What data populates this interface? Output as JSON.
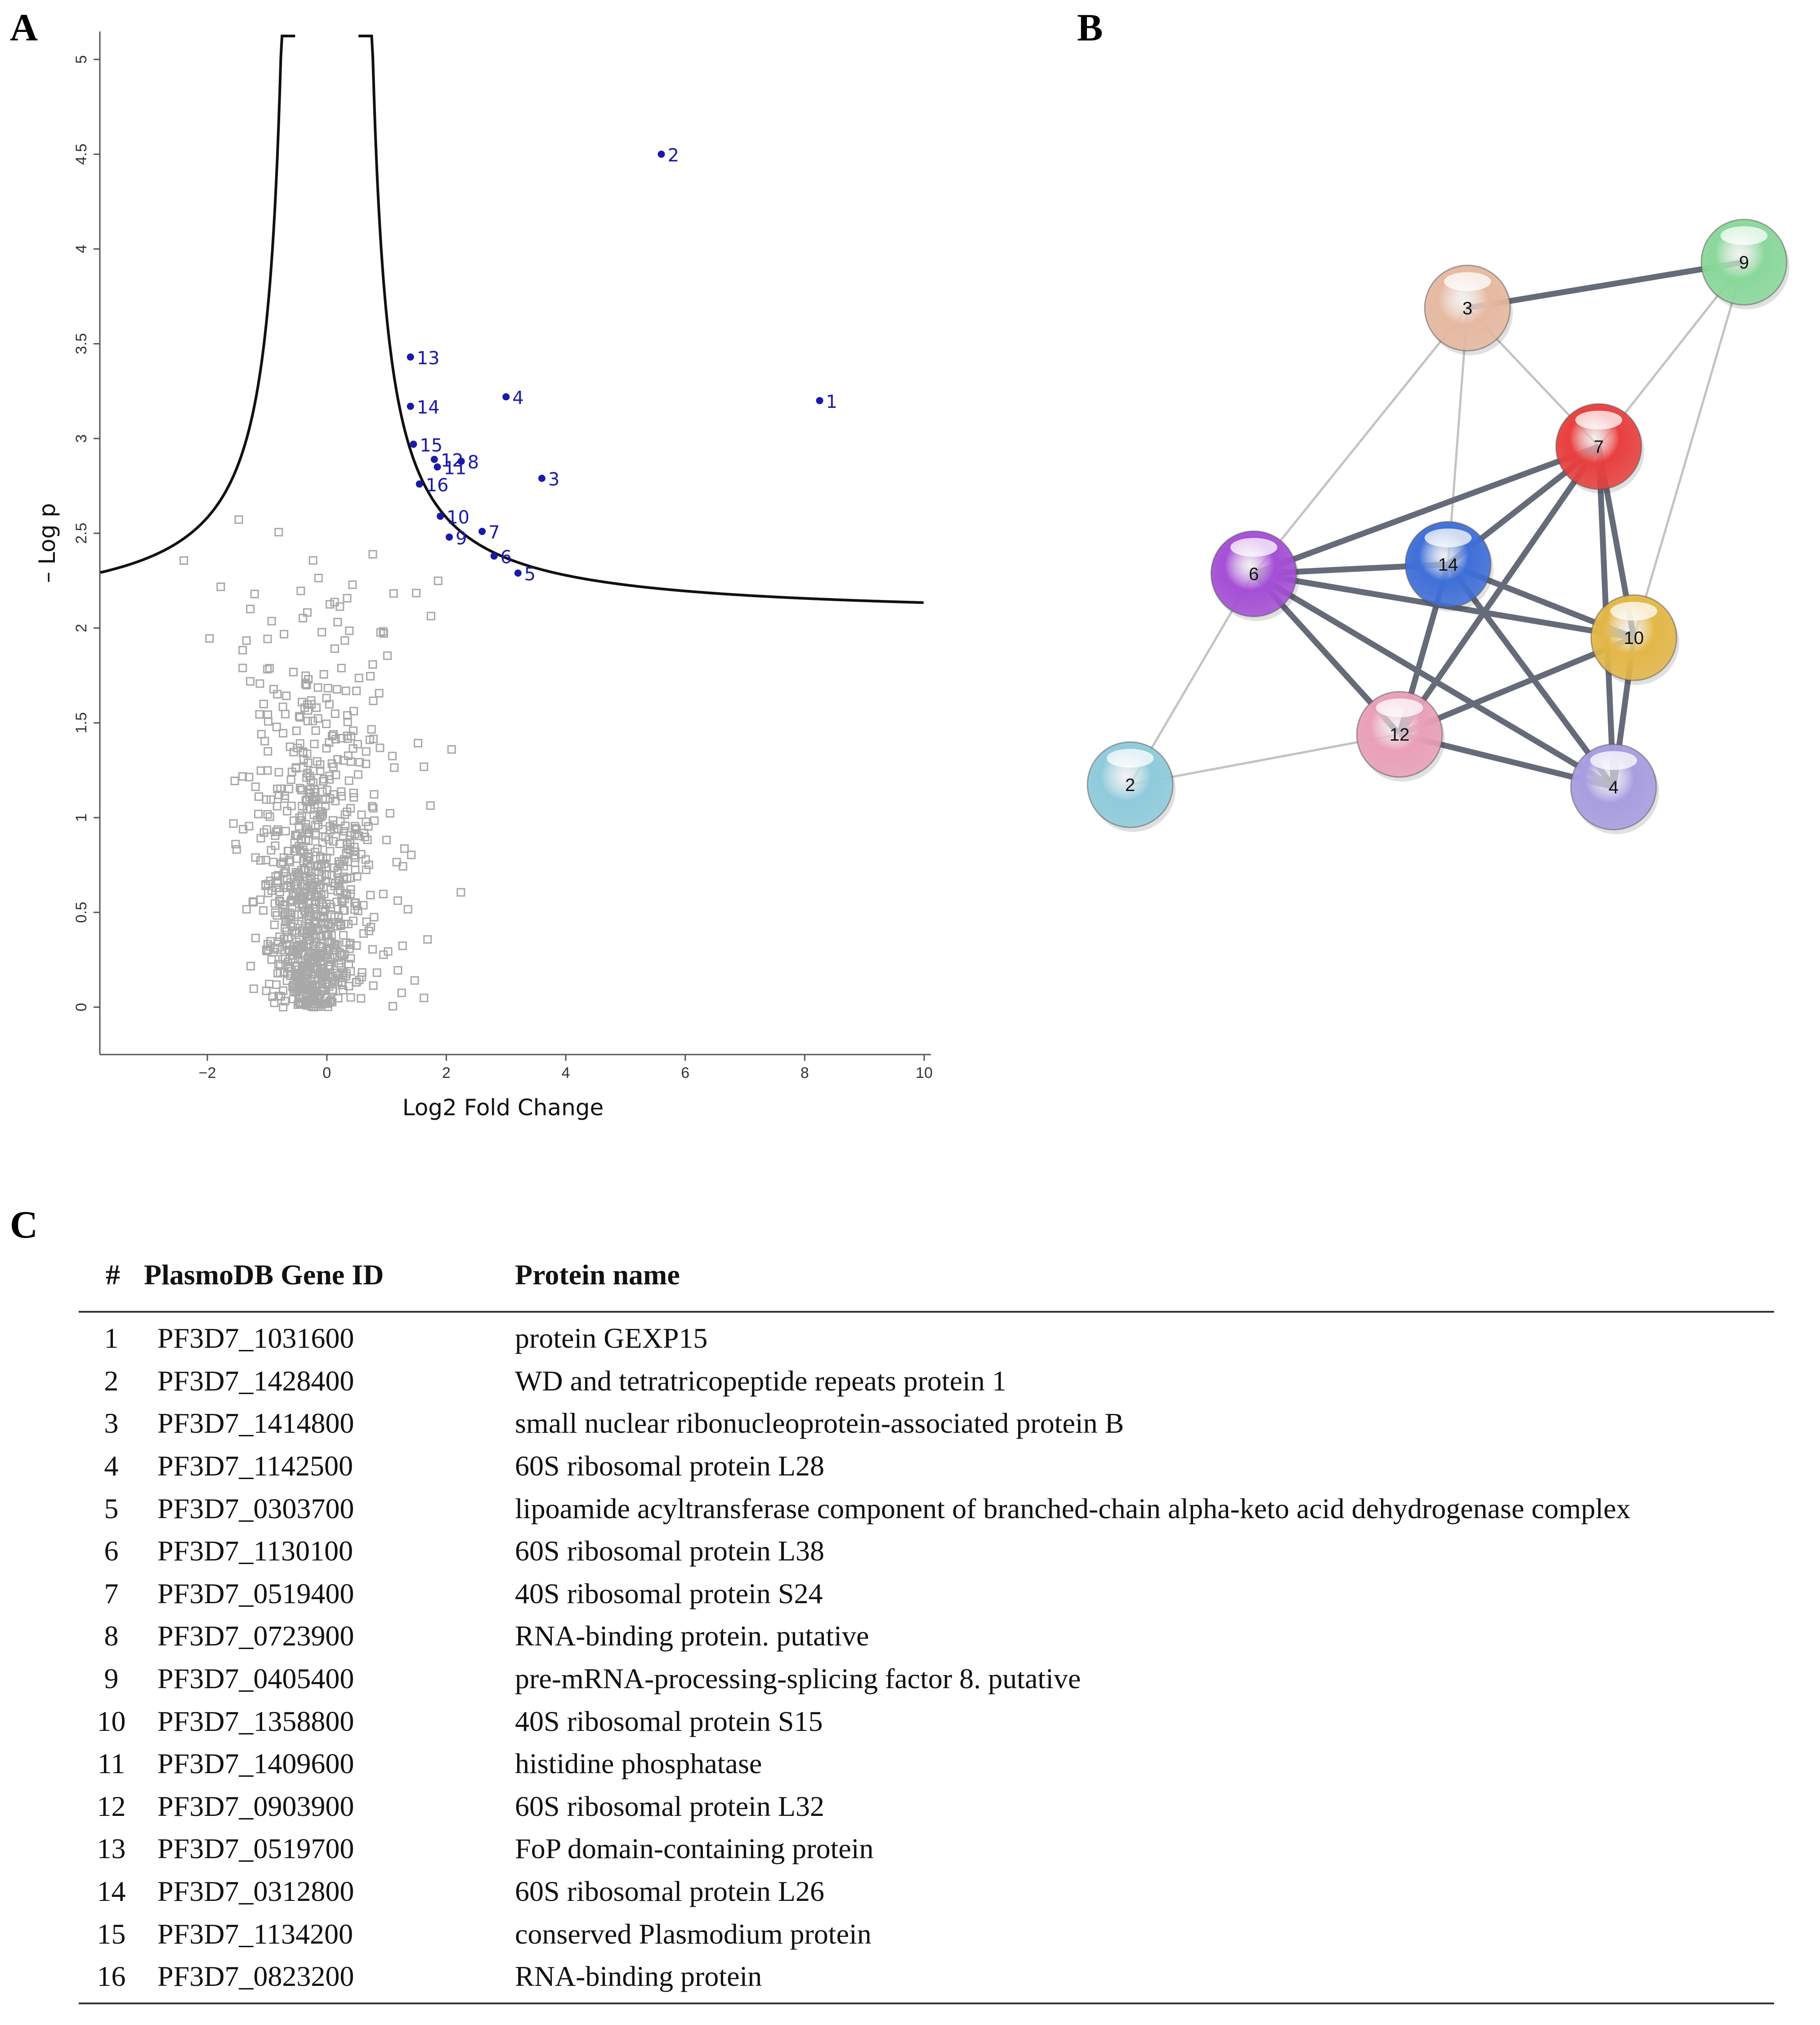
{
  "panels": {
    "a": "A",
    "b": "B",
    "c": "C"
  },
  "chart_data": [
    {
      "type": "scatter",
      "title": "",
      "xlabel": "Log2 Fold Change",
      "ylabel": "– Log p",
      "xlim": [
        -3.8,
        10
      ],
      "ylim": [
        -0.25,
        5.1
      ],
      "xticks": [
        -2,
        0,
        2,
        4,
        6,
        8,
        10
      ],
      "xtick_labels": [
        "−2",
        "0",
        "2",
        "4",
        "6",
        "8",
        "10"
      ],
      "yticks": [
        0,
        0.5,
        1,
        1.5,
        2,
        2.5,
        3,
        3.5,
        4,
        4.5,
        5
      ],
      "ytick_labels": [
        "0",
        "0.5",
        "1",
        "1.5",
        "2",
        "2.5",
        "3",
        "3.5",
        "4",
        "4.5",
        "5"
      ],
      "significance_curve": {
        "s0": 0.5,
        "c": 0.8,
        "description": "hyperbolic cutoff"
      },
      "significant": [
        {
          "label": "1",
          "x": 8.25,
          "y": 3.2
        },
        {
          "label": "2",
          "x": 5.6,
          "y": 4.5
        },
        {
          "label": "3",
          "x": 3.6,
          "y": 2.79
        },
        {
          "label": "4",
          "x": 3.0,
          "y": 3.22
        },
        {
          "label": "5",
          "x": 3.2,
          "y": 2.29
        },
        {
          "label": "6",
          "x": 2.8,
          "y": 2.38
        },
        {
          "label": "7",
          "x": 2.6,
          "y": 2.51
        },
        {
          "label": "8",
          "x": 2.25,
          "y": 2.88
        },
        {
          "label": "9",
          "x": 2.05,
          "y": 2.48
        },
        {
          "label": "10",
          "x": 1.9,
          "y": 2.59
        },
        {
          "label": "11",
          "x": 1.85,
          "y": 2.85
        },
        {
          "label": "12",
          "x": 1.8,
          "y": 2.89
        },
        {
          "label": "13",
          "x": 1.4,
          "y": 3.43
        },
        {
          "label": "14",
          "x": 1.4,
          "y": 3.17
        },
        {
          "label": "15",
          "x": 1.45,
          "y": 2.97
        },
        {
          "label": "16",
          "x": 1.55,
          "y": 2.76
        }
      ],
      "background_point_count": 900
    },
    {
      "type": "network",
      "nodes": [
        {
          "id": "3",
          "color": "#e6b9a1"
        },
        {
          "id": "9",
          "color": "#8ad89a"
        },
        {
          "id": "7",
          "color": "#e8403f"
        },
        {
          "id": "6",
          "color": "#a54fd6"
        },
        {
          "id": "14",
          "color": "#3f6fd8"
        },
        {
          "id": "10",
          "color": "#e3b748"
        },
        {
          "id": "12",
          "color": "#e9a0b8"
        },
        {
          "id": "2",
          "color": "#8fcbdb"
        },
        {
          "id": "4",
          "color": "#a89de0"
        }
      ],
      "edges": [
        {
          "source": "3",
          "target": "9",
          "weight": "strong"
        },
        {
          "source": "3",
          "target": "6",
          "weight": "weak"
        },
        {
          "source": "3",
          "target": "14",
          "weight": "weak"
        },
        {
          "source": "3",
          "target": "7",
          "weight": "weak"
        },
        {
          "source": "9",
          "target": "7",
          "weight": "weak"
        },
        {
          "source": "9",
          "target": "10",
          "weight": "weak"
        },
        {
          "source": "7",
          "target": "6",
          "weight": "strong"
        },
        {
          "source": "7",
          "target": "14",
          "weight": "strong"
        },
        {
          "source": "7",
          "target": "10",
          "weight": "strong"
        },
        {
          "source": "7",
          "target": "12",
          "weight": "strong"
        },
        {
          "source": "7",
          "target": "4",
          "weight": "strong"
        },
        {
          "source": "6",
          "target": "14",
          "weight": "strong"
        },
        {
          "source": "6",
          "target": "10",
          "weight": "strong"
        },
        {
          "source": "6",
          "target": "12",
          "weight": "strong"
        },
        {
          "source": "6",
          "target": "4",
          "weight": "strong"
        },
        {
          "source": "6",
          "target": "2",
          "weight": "weak"
        },
        {
          "source": "14",
          "target": "10",
          "weight": "strong"
        },
        {
          "source": "14",
          "target": "12",
          "weight": "strong"
        },
        {
          "source": "14",
          "target": "4",
          "weight": "strong"
        },
        {
          "source": "10",
          "target": "12",
          "weight": "strong"
        },
        {
          "source": "10",
          "target": "4",
          "weight": "strong"
        },
        {
          "source": "12",
          "target": "4",
          "weight": "strong"
        },
        {
          "source": "12",
          "target": "2",
          "weight": "weak"
        }
      ]
    },
    {
      "type": "table",
      "headers": [
        "#",
        "PlasmoDB Gene ID",
        "Protein name"
      ],
      "rows": [
        {
          "num": "1",
          "gene_id": "PF3D7_1031600",
          "protein": "protein GEXP15"
        },
        {
          "num": "2",
          "gene_id": "PF3D7_1428400",
          "protein": "WD and tetratricopeptide repeats protein 1"
        },
        {
          "num": "3",
          "gene_id": "PF3D7_1414800",
          "protein": "small nuclear ribonucleoprotein-associated protein B"
        },
        {
          "num": "4",
          "gene_id": "PF3D7_1142500",
          "protein": "60S ribosomal protein L28"
        },
        {
          "num": "5",
          "gene_id": "PF3D7_0303700",
          "protein": "lipoamide acyltransferase component of branched-chain alpha-keto acid dehydrogenase complex"
        },
        {
          "num": "6",
          "gene_id": "PF3D7_1130100",
          "protein": "60S ribosomal protein L38"
        },
        {
          "num": "7",
          "gene_id": "PF3D7_0519400",
          "protein": "40S ribosomal protein S24"
        },
        {
          "num": "8",
          "gene_id": "PF3D7_0723900",
          "protein": "RNA-binding protein. putative"
        },
        {
          "num": "9",
          "gene_id": "PF3D7_0405400",
          "protein": "pre-mRNA-processing-splicing factor 8. putative"
        },
        {
          "num": "10",
          "gene_id": "PF3D7_1358800",
          "protein": "40S ribosomal protein S15"
        },
        {
          "num": "11",
          "gene_id": "PF3D7_1409600",
          "protein": "histidine phosphatase"
        },
        {
          "num": "12",
          "gene_id": "PF3D7_0903900",
          "protein": "60S ribosomal protein L32"
        },
        {
          "num": "13",
          "gene_id": "PF3D7_0519700",
          "protein": "FoP domain-containing protein"
        },
        {
          "num": "14",
          "gene_id": "PF3D7_0312800",
          "protein": "60S ribosomal protein L26"
        },
        {
          "num": "15",
          "gene_id": "PF3D7_1134200",
          "protein": "conserved Plasmodium protein"
        },
        {
          "num": "16",
          "gene_id": "PF3D7_0823200",
          "protein": "RNA-binding protein"
        }
      ]
    }
  ]
}
